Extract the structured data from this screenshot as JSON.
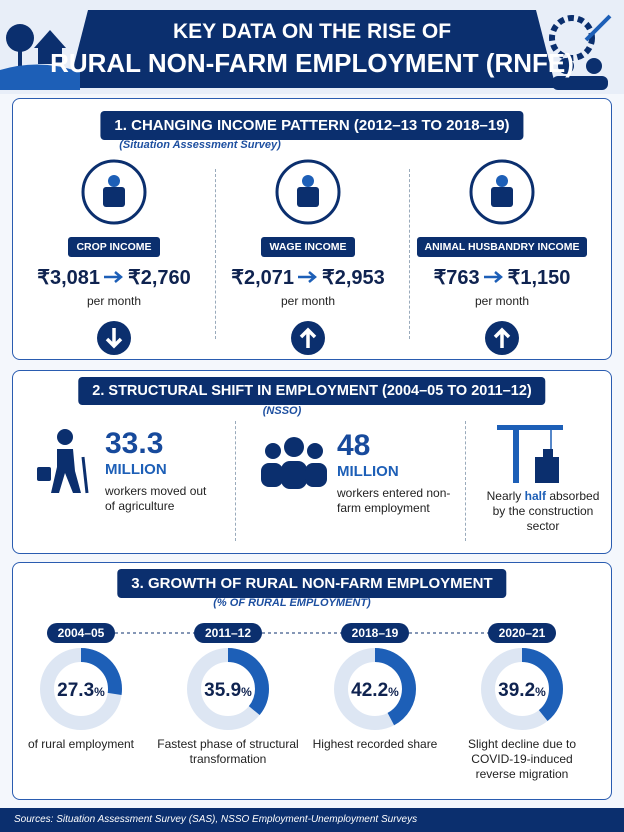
{
  "header": {
    "title_line1": "KEY DATA ON THE RISE OF",
    "title_line2": "RURAL NON-FARM EMPLOYMENT (RNFE)"
  },
  "section1": {
    "heading": "1. CHANGING INCOME PATTERN (2012–13 TO 2018–19)",
    "source": "(Situation Assessment Survey)",
    "items": [
      {
        "label": "CROP INCOME",
        "from": "₹3,081",
        "to": "₹2,760",
        "unit": "per month",
        "trend": "down"
      },
      {
        "label": "WAGE INCOME",
        "from": "₹2,071",
        "to": "₹2,953",
        "unit": "per month",
        "trend": "up"
      },
      {
        "label": "ANIMAL HUSBANDRY INCOME",
        "from": "₹763",
        "to": "₹1,150",
        "unit": "per month",
        "trend": "up"
      }
    ]
  },
  "section2": {
    "heading": "2. STRUCTURAL SHIFT IN EMPLOYMENT (2004–05 TO 2011–12)",
    "source": "(NSSO)",
    "stats": [
      {
        "value": "33.3",
        "unit": "MILLION",
        "description": "workers moved out of agriculture"
      },
      {
        "value": "48",
        "unit": "MILLION",
        "description": "workers entered non-farm employment"
      }
    ],
    "construction": {
      "prefix": "Nearly",
      "emphasis": "half",
      "suffix": "absorbed by the construction sector"
    }
  },
  "section3": {
    "heading": "3. GROWTH OF RURAL NON-FARM EMPLOYMENT",
    "subtitle": "(% OF RURAL EMPLOYMENT)"
  },
  "chart_data": {
    "type": "donut",
    "categories": [
      "2004–05",
      "2011–12",
      "2018–19",
      "2020–21"
    ],
    "values": [
      27.3,
      35.9,
      42.2,
      39.2
    ],
    "value_unit": "%",
    "descriptions": [
      "of rural employment",
      "Fastest phase of structural transformation",
      "Highest recorded share",
      "Slight decline due to COVID-19-induced reverse migration"
    ],
    "ylim": [
      0,
      100
    ],
    "color": "#1d5fb7"
  },
  "footer": {
    "sources": "Sources: Situation Assessment Survey (SAS), NSSO Employment-Unemployment Surveys"
  }
}
